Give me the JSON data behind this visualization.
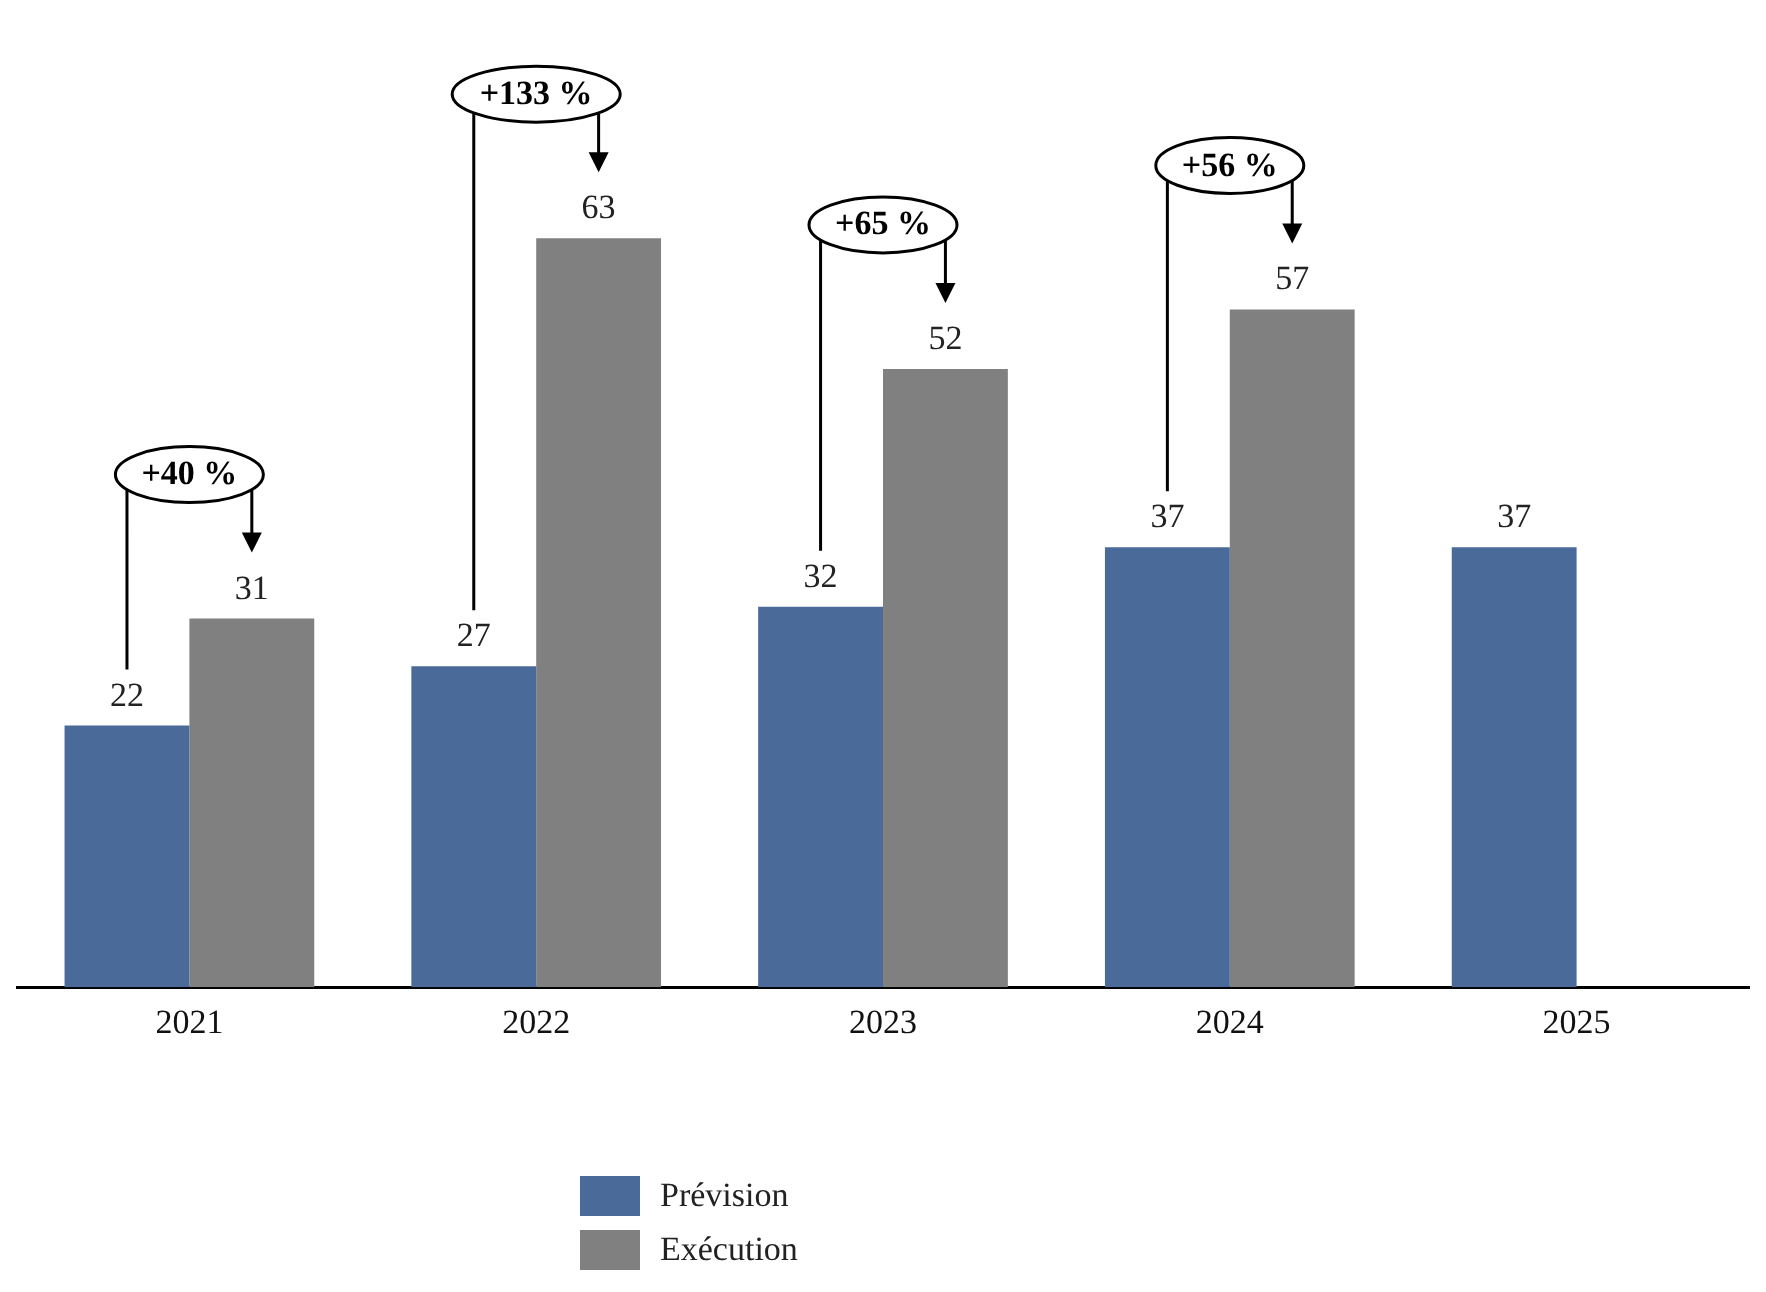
{
  "chart_data": {
    "type": "bar",
    "categories": [
      "2021",
      "2022",
      "2023",
      "2024",
      "2025"
    ],
    "series": [
      {
        "name": "Prévision",
        "color": "#4a6a99",
        "values": [
          22,
          27,
          32,
          37,
          37
        ]
      },
      {
        "name": "Exécution",
        "color": "#808080",
        "values": [
          31,
          63,
          52,
          57,
          null
        ]
      }
    ],
    "data_labels": true,
    "legend": "bottom",
    "annotations": [
      "+40 %",
      "+133 %",
      "+65 %",
      "+56 %"
    ]
  }
}
